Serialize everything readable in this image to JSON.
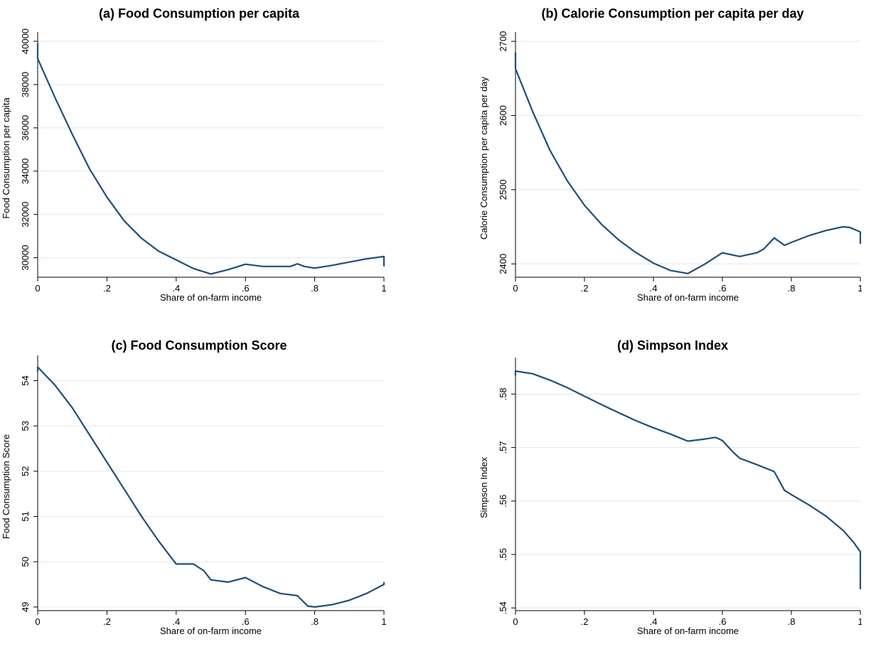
{
  "chart_data": [
    {
      "type": "line",
      "title": "(a) Food Consumption per capita",
      "xlabel": "Share of on-farm income",
      "ylabel": "Food Consumption per capita",
      "xlim": [
        0,
        1
      ],
      "ylim": [
        29100,
        40100
      ],
      "xticks": [
        0,
        0.2,
        0.4,
        0.6,
        0.8,
        1
      ],
      "xtick_labels": [
        "0",
        ".2",
        ".4",
        ".6",
        ".8",
        "1"
      ],
      "yticks": [
        30000,
        32000,
        34000,
        36000,
        38000,
        40000
      ],
      "ytick_labels": [
        "30000",
        "32000",
        "34000",
        "36000",
        "38000",
        "40000"
      ],
      "grid": true,
      "series": [
        {
          "x": [
            0,
            0,
            0.05,
            0.1,
            0.15,
            0.2,
            0.25,
            0.3,
            0.35,
            0.4,
            0.45,
            0.5,
            0.55,
            0.6,
            0.65,
            0.7,
            0.73,
            0.75,
            0.77,
            0.8,
            0.85,
            0.9,
            0.95,
            1,
            1
          ],
          "y": [
            39900,
            39200,
            37400,
            35700,
            34100,
            32800,
            31700,
            30900,
            30300,
            29900,
            29500,
            29250,
            29450,
            29700,
            29600,
            29600,
            29600,
            29720,
            29600,
            29520,
            29650,
            29800,
            29950,
            30060,
            29600
          ]
        }
      ]
    },
    {
      "type": "line",
      "title": "(b) Calorie Consumption per capita per day",
      "xlabel": "Share of on-farm income",
      "ylabel": "Calorie Consumption per capita per day",
      "xlim": [
        0,
        1
      ],
      "ylim": [
        2382,
        2703
      ],
      "xticks": [
        0,
        0.2,
        0.4,
        0.6,
        0.8,
        1
      ],
      "xtick_labels": [
        "0",
        ".2",
        ".4",
        ".6",
        ".8",
        "1"
      ],
      "yticks": [
        2400,
        2500,
        2600,
        2700
      ],
      "ytick_labels": [
        "2400",
        "2500",
        "2600",
        "2700"
      ],
      "grid": true,
      "series": [
        {
          "x": [
            0,
            0,
            0.05,
            0.1,
            0.15,
            0.2,
            0.25,
            0.3,
            0.35,
            0.4,
            0.45,
            0.5,
            0.55,
            0.6,
            0.65,
            0.7,
            0.72,
            0.75,
            0.78,
            0.8,
            0.85,
            0.9,
            0.95,
            0.97,
            1,
            1
          ],
          "y": [
            2685,
            2663,
            2605,
            2553,
            2512,
            2479,
            2453,
            2432,
            2415,
            2401,
            2391,
            2387,
            2400,
            2415,
            2410,
            2415,
            2420,
            2435,
            2425,
            2429,
            2438,
            2445,
            2450,
            2449,
            2443,
            2427
          ]
        }
      ]
    },
    {
      "type": "line",
      "title": "(c) Food Consumption Score",
      "xlabel": "Share of on-farm income",
      "ylabel": "Food Consumption Score",
      "xlim": [
        0,
        1
      ],
      "ylim": [
        48.92,
        54.4
      ],
      "xticks": [
        0,
        0.2,
        0.4,
        0.6,
        0.8,
        1
      ],
      "xtick_labels": [
        "0",
        ".2",
        ".4",
        ".6",
        ".8",
        "1"
      ],
      "yticks": [
        49,
        50,
        51,
        52,
        53,
        54
      ],
      "ytick_labels": [
        "49",
        "50",
        "51",
        "52",
        "53",
        "54"
      ],
      "grid": true,
      "series": [
        {
          "x": [
            0,
            0,
            0.05,
            0.1,
            0.15,
            0.2,
            0.25,
            0.3,
            0.35,
            0.4,
            0.45,
            0.48,
            0.5,
            0.55,
            0.6,
            0.65,
            0.7,
            0.75,
            0.78,
            0.8,
            0.85,
            0.9,
            0.95,
            1,
            1
          ],
          "y": [
            54.2,
            54.3,
            53.9,
            53.4,
            52.8,
            52.2,
            51.6,
            51.0,
            50.45,
            49.95,
            49.95,
            49.8,
            49.6,
            49.55,
            49.65,
            49.45,
            49.3,
            49.25,
            49.02,
            49.0,
            49.05,
            49.15,
            49.3,
            49.5,
            49.55
          ]
        }
      ]
    },
    {
      "type": "line",
      "title": "(d) Simpson Index",
      "xlabel": "Share of on-farm income",
      "ylabel": "Simpson Index",
      "xlim": [
        0,
        1
      ],
      "ylim": [
        0.5395,
        0.5855
      ],
      "xticks": [
        0,
        0.2,
        0.4,
        0.6,
        0.8,
        1
      ],
      "xtick_labels": [
        "0",
        ".2",
        ".4",
        ".6",
        ".8",
        "1"
      ],
      "yticks": [
        0.54,
        0.55,
        0.56,
        0.57,
        0.58
      ],
      "ytick_labels": [
        ".54",
        ".55",
        ".56",
        ".57",
        ".58"
      ],
      "grid": true,
      "series": [
        {
          "x": [
            0,
            0,
            0.05,
            0.1,
            0.15,
            0.2,
            0.25,
            0.3,
            0.35,
            0.4,
            0.45,
            0.5,
            0.55,
            0.58,
            0.6,
            0.63,
            0.65,
            0.7,
            0.75,
            0.78,
            0.8,
            0.85,
            0.9,
            0.95,
            0.98,
            1,
            1
          ],
          "y": [
            0.5835,
            0.5843,
            0.5838,
            0.5826,
            0.5812,
            0.5796,
            0.578,
            0.5765,
            0.575,
            0.5737,
            0.5725,
            0.5712,
            0.5716,
            0.5719,
            0.5713,
            0.5692,
            0.568,
            0.5668,
            0.5655,
            0.562,
            0.5612,
            0.5593,
            0.5572,
            0.5545,
            0.5523,
            0.5505,
            0.5435
          ]
        }
      ]
    }
  ]
}
